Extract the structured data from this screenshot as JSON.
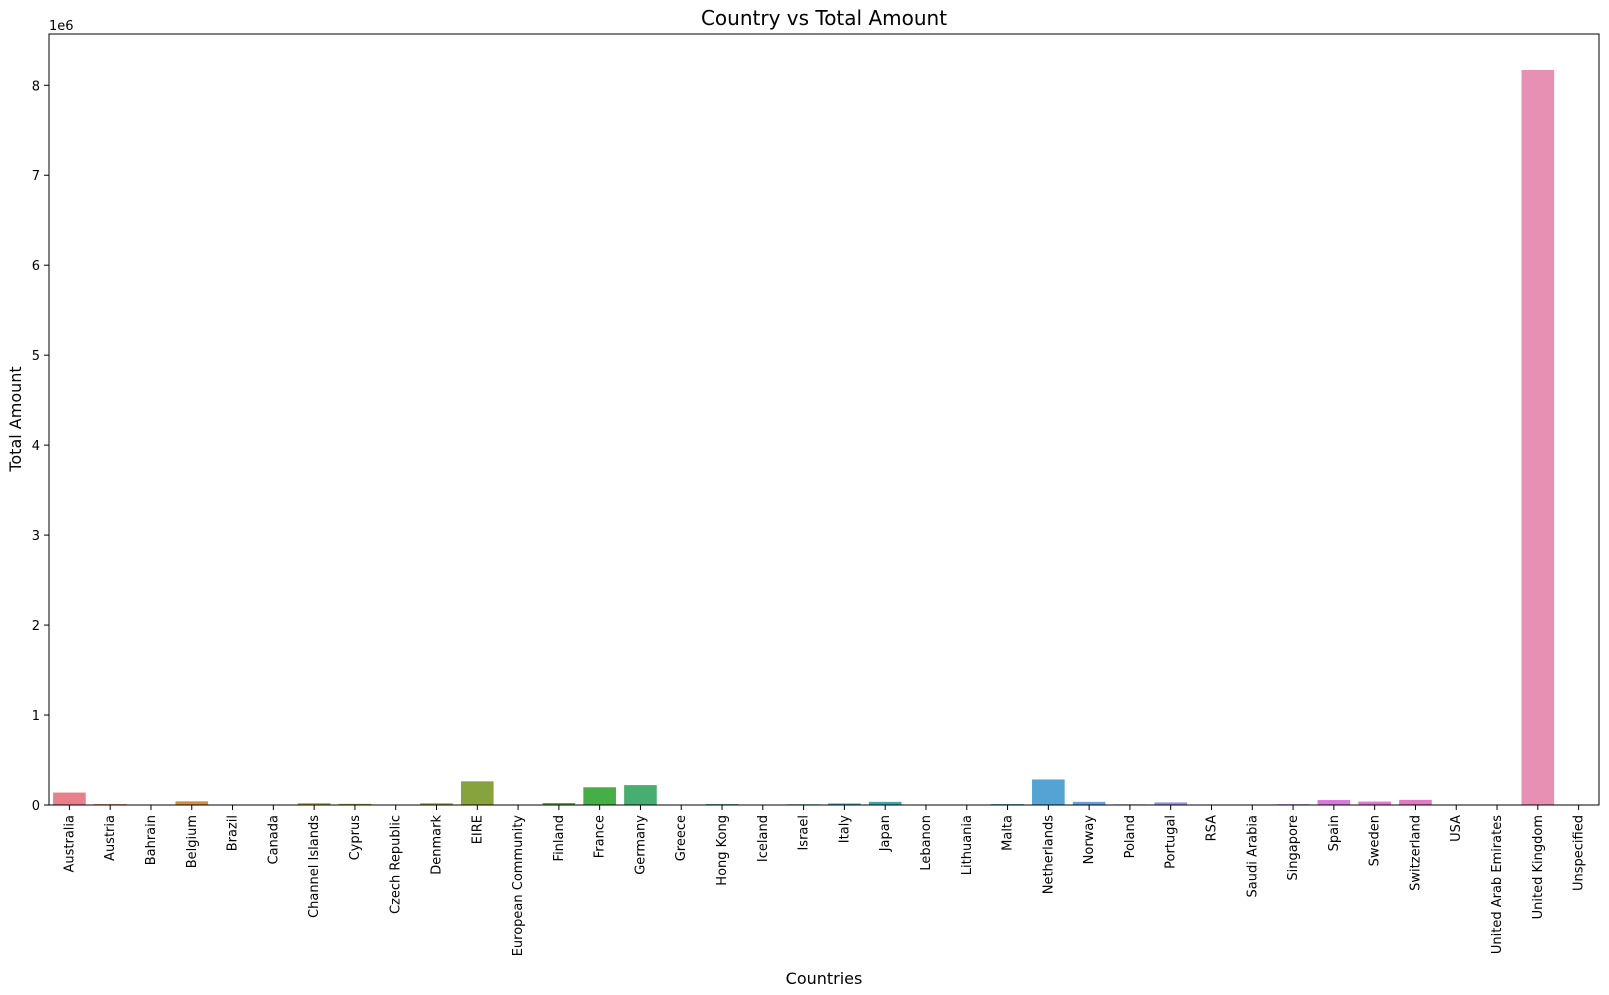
{
  "chart_data": {
    "type": "bar",
    "title": "Country vs Total Amount",
    "xlabel": "Countries",
    "ylabel": "Total Amount",
    "y_offset_label": "1e6",
    "ylim": [
      0,
      8.57
    ],
    "yticks": [
      0,
      1,
      2,
      3,
      4,
      5,
      6,
      7,
      8
    ],
    "grid": false,
    "categories": [
      "Australia",
      "Austria",
      "Bahrain",
      "Belgium",
      "Brazil",
      "Canada",
      "Channel Islands",
      "Cyprus",
      "Czech Republic",
      "Denmark",
      "EIRE",
      "European Community",
      "Finland",
      "France",
      "Germany",
      "Greece",
      "Hong Kong",
      "Iceland",
      "Israel",
      "Italy",
      "Japan",
      "Lebanon",
      "Lithuania",
      "Malta",
      "Netherlands",
      "Norway",
      "Poland",
      "Portugal",
      "RSA",
      "Saudi Arabia",
      "Singapore",
      "Spain",
      "Sweden",
      "Switzerland",
      "USA",
      "United Arab Emirates",
      "United Kingdom",
      "Unspecified"
    ],
    "values": [
      0.138,
      0.01,
      0.001,
      0.041,
      0.001,
      0.004,
      0.02,
      0.013,
      0.001,
      0.019,
      0.263,
      0.001,
      0.022,
      0.197,
      0.221,
      0.005,
      0.01,
      0.004,
      0.008,
      0.017,
      0.035,
      0.002,
      0.002,
      0.01,
      0.284,
      0.035,
      0.007,
      0.029,
      0.001,
      0.001,
      0.009,
      0.055,
      0.038,
      0.057,
      0.002,
      0.002,
      8.17,
      0.005
    ],
    "colors": [
      "#e8808c",
      "#e0866b",
      "#dc8b4a",
      "#d88d3c",
      "#c99440",
      "#b99b40",
      "#aa9e3a",
      "#a5a13b",
      "#9aa23b",
      "#8da33c",
      "#86a33d",
      "#6ea83b",
      "#56ab3b",
      "#46ae46",
      "#45ae70",
      "#46aa80",
      "#45a98a",
      "#45a795",
      "#43a69c",
      "#3ea5a5",
      "#40a6ae",
      "#40a6b6",
      "#42a5bf",
      "#45a4c9",
      "#54a3d4",
      "#6a9fdd",
      "#829be2",
      "#9596e5",
      "#a68fe8",
      "#b388e6",
      "#c480e4",
      "#d47ad9",
      "#df7acf",
      "#e07ac3",
      "#e07eb3",
      "#e786aa",
      "#e890b3",
      "#e88aa4"
    ]
  }
}
